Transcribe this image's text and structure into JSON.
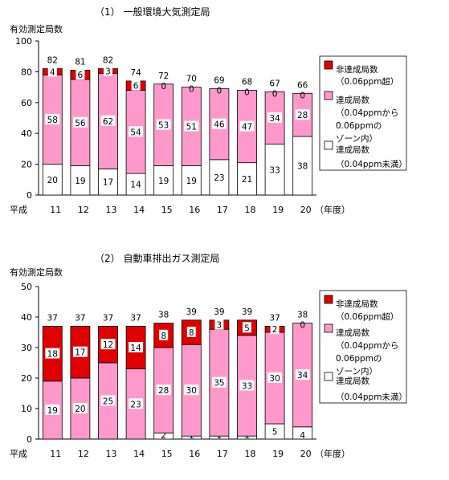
{
  "chart_data": [
    {
      "type": "bar",
      "stacked": true,
      "title": "（1） 一般環境大気測定局",
      "ylabel": "有効測定局数",
      "xlabel_prefix": "平成",
      "xlabel_suffix": "（年度）",
      "categories": [
        "11",
        "12",
        "13",
        "14",
        "15",
        "16",
        "17",
        "18",
        "19",
        "20"
      ],
      "ylim": [
        0,
        100
      ],
      "yticks": [
        0,
        20,
        40,
        60,
        80,
        100
      ],
      "totals": [
        82,
        81,
        82,
        74,
        72,
        70,
        69,
        68,
        67,
        66
      ],
      "series": [
        {
          "name": "達成局数",
          "name_sub": "（0.04ppm未満）",
          "color": "#ffffff",
          "values": [
            20,
            19,
            17,
            14,
            19,
            19,
            23,
            21,
            33,
            38
          ]
        },
        {
          "name": "達成局数",
          "name_sub": "（0.04ppmから 0.06ppmの ゾーン内）",
          "color": "#ff99cc",
          "values": [
            58,
            56,
            62,
            54,
            53,
            51,
            46,
            47,
            34,
            28
          ]
        },
        {
          "name": "非達成局数",
          "name_sub": "（0.06ppm超）",
          "color": "#e00000",
          "values": [
            4,
            6,
            3,
            6,
            0,
            0,
            0,
            0,
            0,
            0
          ]
        }
      ]
    },
    {
      "type": "bar",
      "stacked": true,
      "title": "（2） 自動車排出ガス測定局",
      "ylabel": "有効測定局数",
      "xlabel_prefix": "平成",
      "xlabel_suffix": "（年度）",
      "categories": [
        "11",
        "12",
        "13",
        "14",
        "15",
        "16",
        "17",
        "18",
        "19",
        "20"
      ],
      "ylim": [
        0,
        50
      ],
      "yticks": [
        0,
        10,
        20,
        30,
        40,
        50
      ],
      "totals": [
        37,
        37,
        37,
        37,
        38,
        39,
        39,
        39,
        37,
        38
      ],
      "series": [
        {
          "name": "達成局数",
          "name_sub": "（0.04ppm未満）",
          "color": "#ffffff",
          "values": [
            0,
            0,
            0,
            0,
            2,
            1,
            1,
            1,
            5,
            4
          ]
        },
        {
          "name": "達成局数",
          "name_sub": "（0.04ppmから 0.06ppmの ゾーン内）",
          "color": "#ff99cc",
          "values": [
            19,
            20,
            25,
            23,
            28,
            30,
            35,
            33,
            30,
            34
          ]
        },
        {
          "name": "非達成局数",
          "name_sub": "（0.06ppm超）",
          "color": "#e00000",
          "values": [
            18,
            17,
            12,
            14,
            8,
            8,
            3,
            5,
            2,
            0
          ]
        }
      ]
    }
  ]
}
